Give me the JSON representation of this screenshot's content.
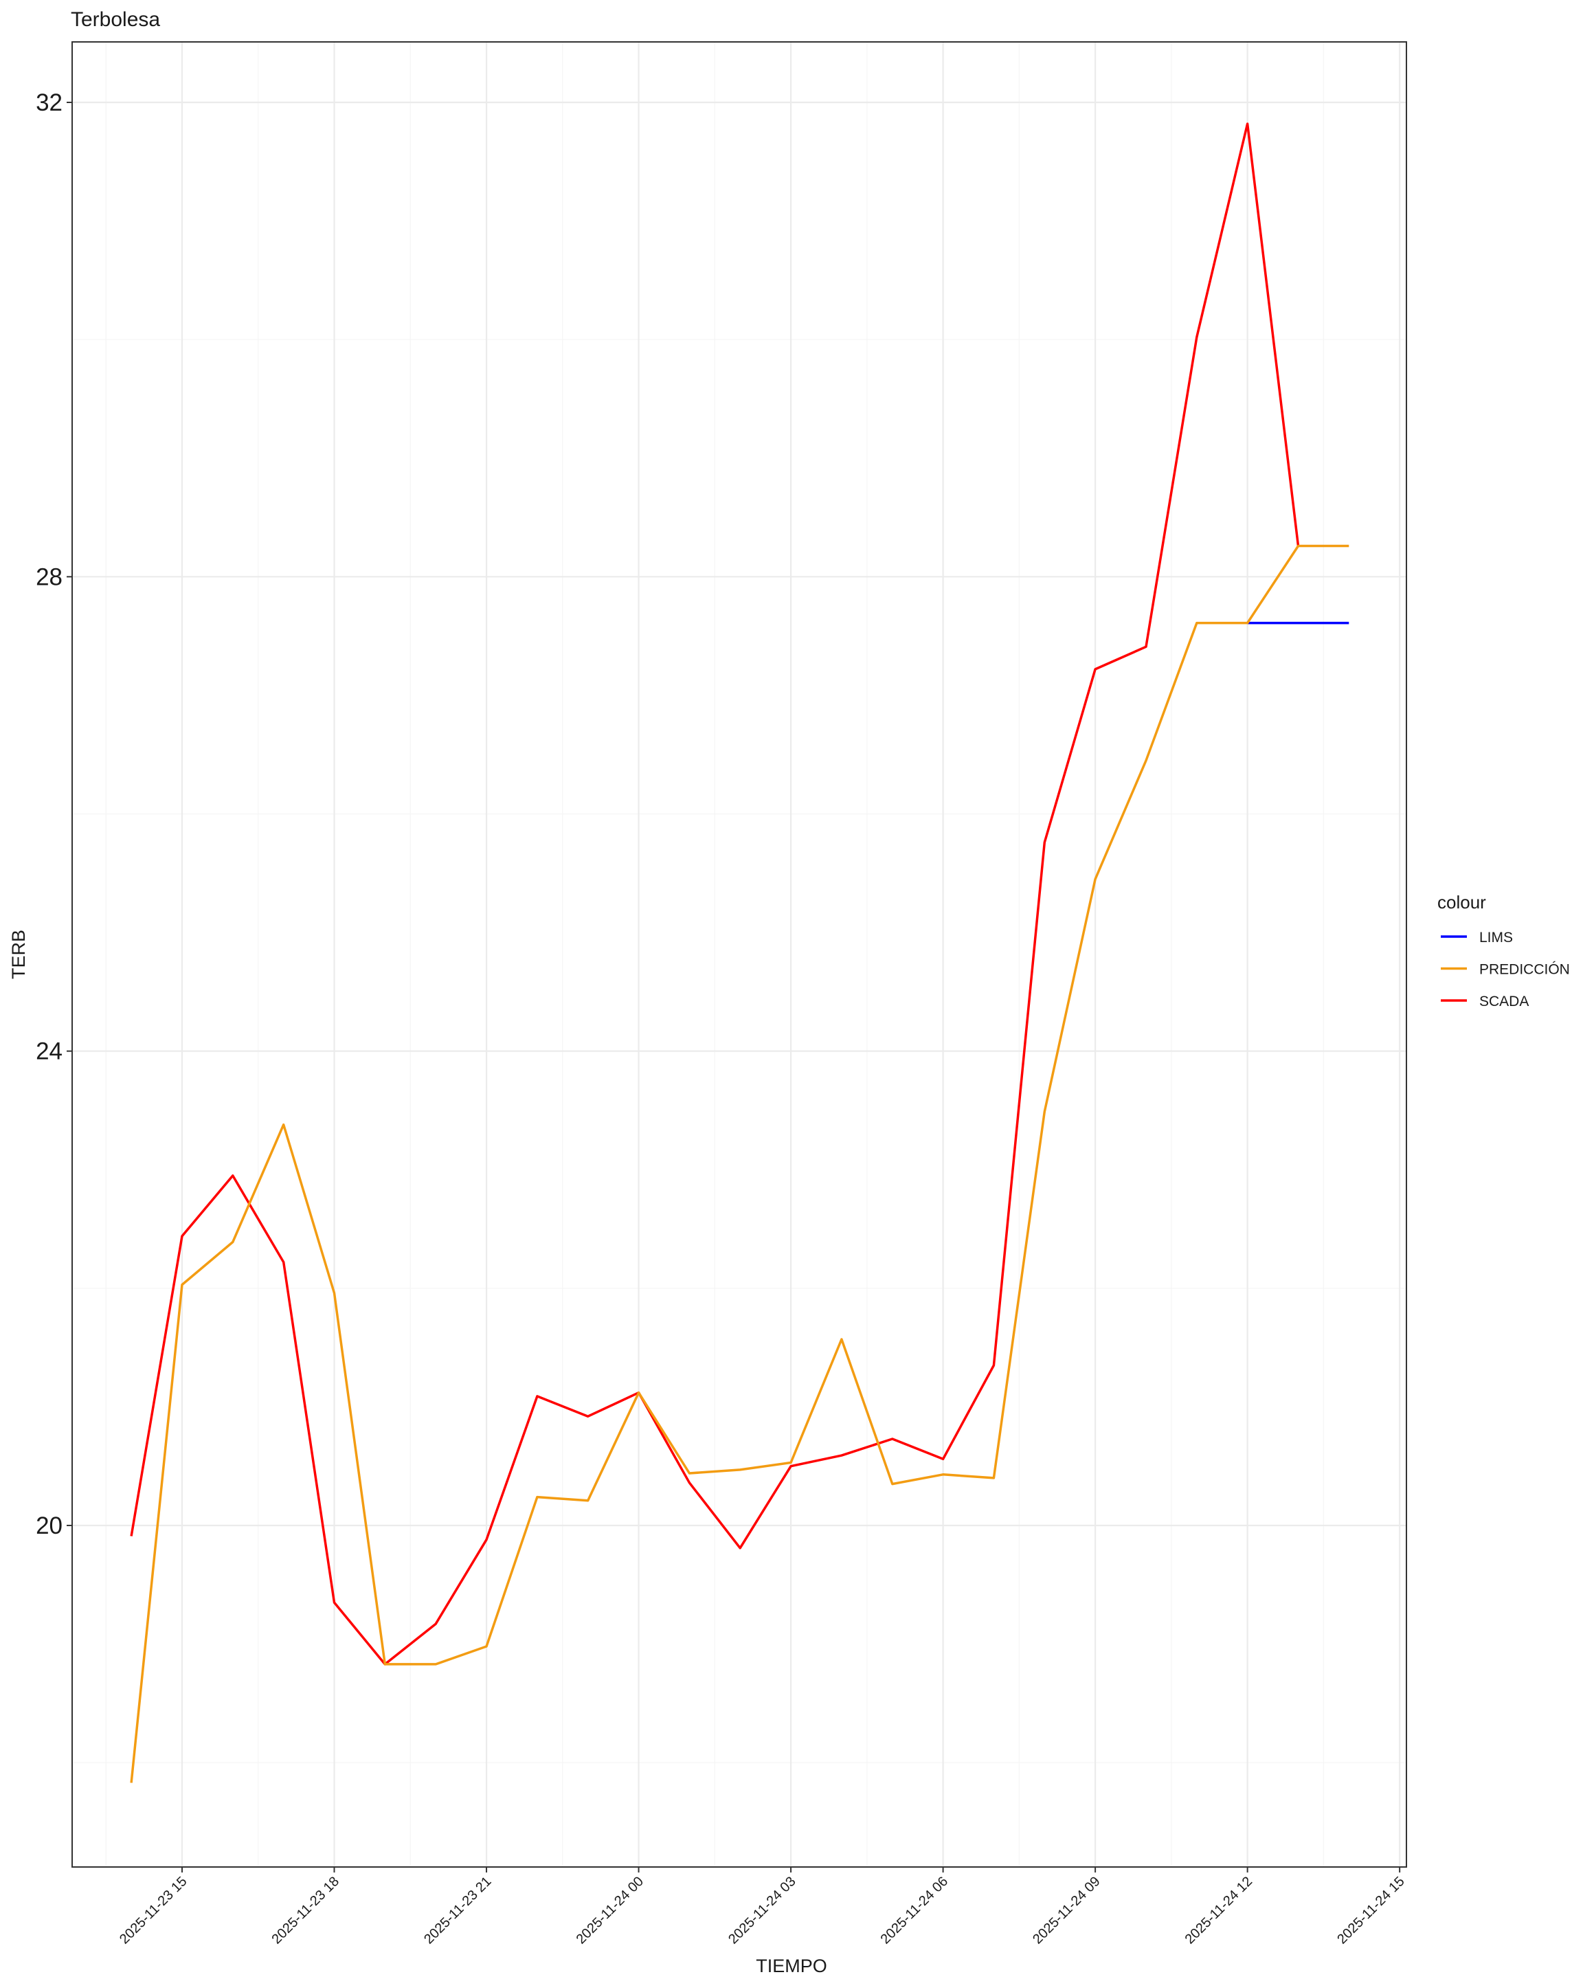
{
  "chart_data": {
    "type": "line",
    "title": "Terbolesa",
    "x_label": "TIEMPO",
    "y_label": "TERB",
    "legend_title": "colour",
    "legend": "right",
    "grid": true,
    "x": [
      "2025-11-23 14",
      "2025-11-23 15",
      "2025-11-23 16",
      "2025-11-23 17",
      "2025-11-23 18",
      "2025-11-23 19",
      "2025-11-23 20",
      "2025-11-23 21",
      "2025-11-23 22",
      "2025-11-23 23",
      "2025-11-24 00",
      "2025-11-24 01",
      "2025-11-24 02",
      "2025-11-24 03",
      "2025-11-24 04",
      "2025-11-24 05",
      "2025-11-24 06",
      "2025-11-24 07",
      "2025-11-24 08",
      "2025-11-24 09",
      "2025-11-24 10",
      "2025-11-24 11",
      "2025-11-24 12",
      "2025-11-24 13",
      "2025-11-24 14"
    ],
    "xlim": [
      "2025-11-23 12:50",
      "2025-11-24 15:08"
    ],
    "xticks": [
      "2025-11-23 15",
      "2025-11-23 18",
      "2025-11-23 21",
      "2025-11-24 00",
      "2025-11-24 03",
      "2025-11-24 06",
      "2025-11-24 09",
      "2025-11-24 12",
      "2025-11-24 15"
    ],
    "ylim": [
      17.12,
      32.51
    ],
    "yticks": [
      20,
      24,
      28,
      32
    ],
    "series": [
      {
        "name": "LIMS",
        "color": "#0000ff",
        "values": [
          null,
          null,
          null,
          null,
          null,
          null,
          null,
          null,
          null,
          null,
          null,
          null,
          null,
          null,
          null,
          null,
          null,
          null,
          null,
          null,
          null,
          null,
          27.61,
          27.61,
          27.61
        ]
      },
      {
        "name": "SCADA",
        "color": "#ff0000",
        "values": [
          19.91,
          22.44,
          22.95,
          22.22,
          19.35,
          18.83,
          19.17,
          19.88,
          21.09,
          20.92,
          21.12,
          20.36,
          19.81,
          20.5,
          20.59,
          20.73,
          20.56,
          21.35,
          25.76,
          27.22,
          27.41,
          30.02,
          31.82,
          28.26,
          null
        ]
      },
      {
        "name": "PREDICCIÓN",
        "color": "#f39c12",
        "values": [
          17.83,
          22.03,
          22.39,
          23.38,
          21.96,
          18.83,
          18.83,
          18.98,
          20.24,
          20.21,
          21.12,
          20.44,
          20.47,
          20.53,
          21.57,
          20.35,
          20.43,
          20.4,
          23.49,
          25.45,
          26.45,
          27.61,
          27.61,
          28.26,
          28.26
        ]
      }
    ]
  }
}
